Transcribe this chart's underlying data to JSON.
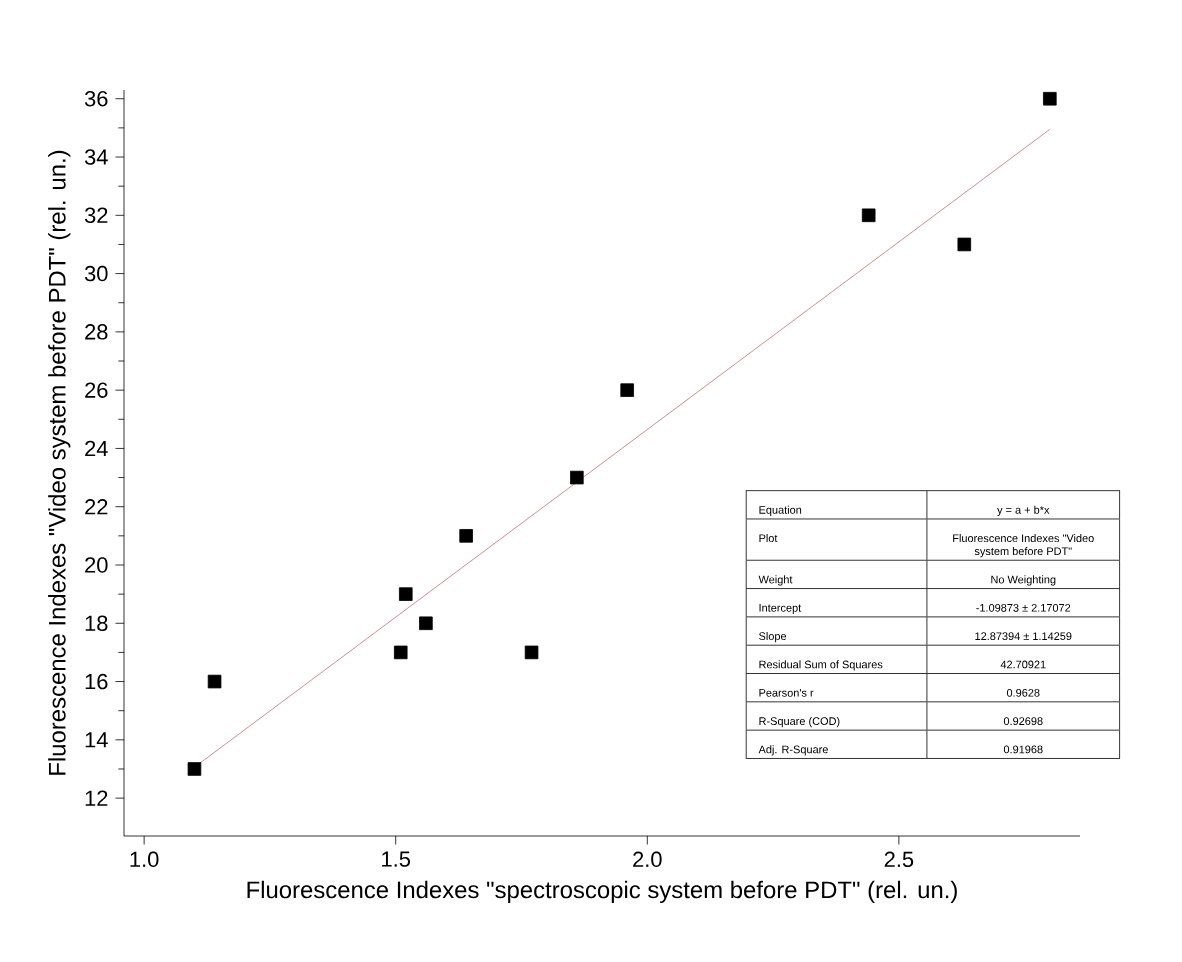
{
  "chart_data": {
    "type": "scatter",
    "xlabel": "Fluorescence Indexes \"spectroscopic system before PDT\" (rel. un.)",
    "ylabel": "Fluorescence Indexes \"Video system before PDT\" (rel. un.)",
    "xlim": [
      0.96,
      2.86
    ],
    "ylim": [
      10.7,
      36.3
    ],
    "xticks": [
      {
        "value": 1.0,
        "label": "1.0"
      },
      {
        "value": 1.5,
        "label": "1.5"
      },
      {
        "value": 2.0,
        "label": "2.0"
      },
      {
        "value": 2.5,
        "label": "2.5"
      }
    ],
    "yticks": [
      12,
      14,
      16,
      18,
      20,
      22,
      24,
      26,
      28,
      30,
      32,
      34,
      36
    ],
    "marker": "square",
    "series": [
      {
        "color": "#000000",
        "x": [
          1.1,
          1.14,
          1.51,
          1.52,
          1.56,
          1.64,
          1.77,
          1.86,
          1.96,
          2.44,
          2.63,
          2.8
        ],
        "values": [
          13,
          16,
          17,
          19,
          18,
          21,
          17,
          23,
          26,
          32,
          31,
          36
        ]
      },
      {
        "type": "line",
        "color": "#c87070",
        "marker": "none",
        "x": [
          1.1,
          2.8
        ],
        "values": [
          13.06,
          34.95
        ]
      }
    ],
    "annotations": [
      "Equation",
      "y = a + b*x",
      "Plot",
      "Fluorescence Indexes \"Video system before PDT\"",
      "Weight",
      "No Weighting",
      "Intercept",
      "-1.09873 ± 2.17072",
      "Slope",
      "12.87394 ± 1.14259",
      "Residual Sum of Squares",
      "42.70921",
      "Pearson's r",
      "0.9628",
      "R-Square (COD)",
      "0.92698",
      "Adj. R-Square",
      "0.91968"
    ]
  }
}
